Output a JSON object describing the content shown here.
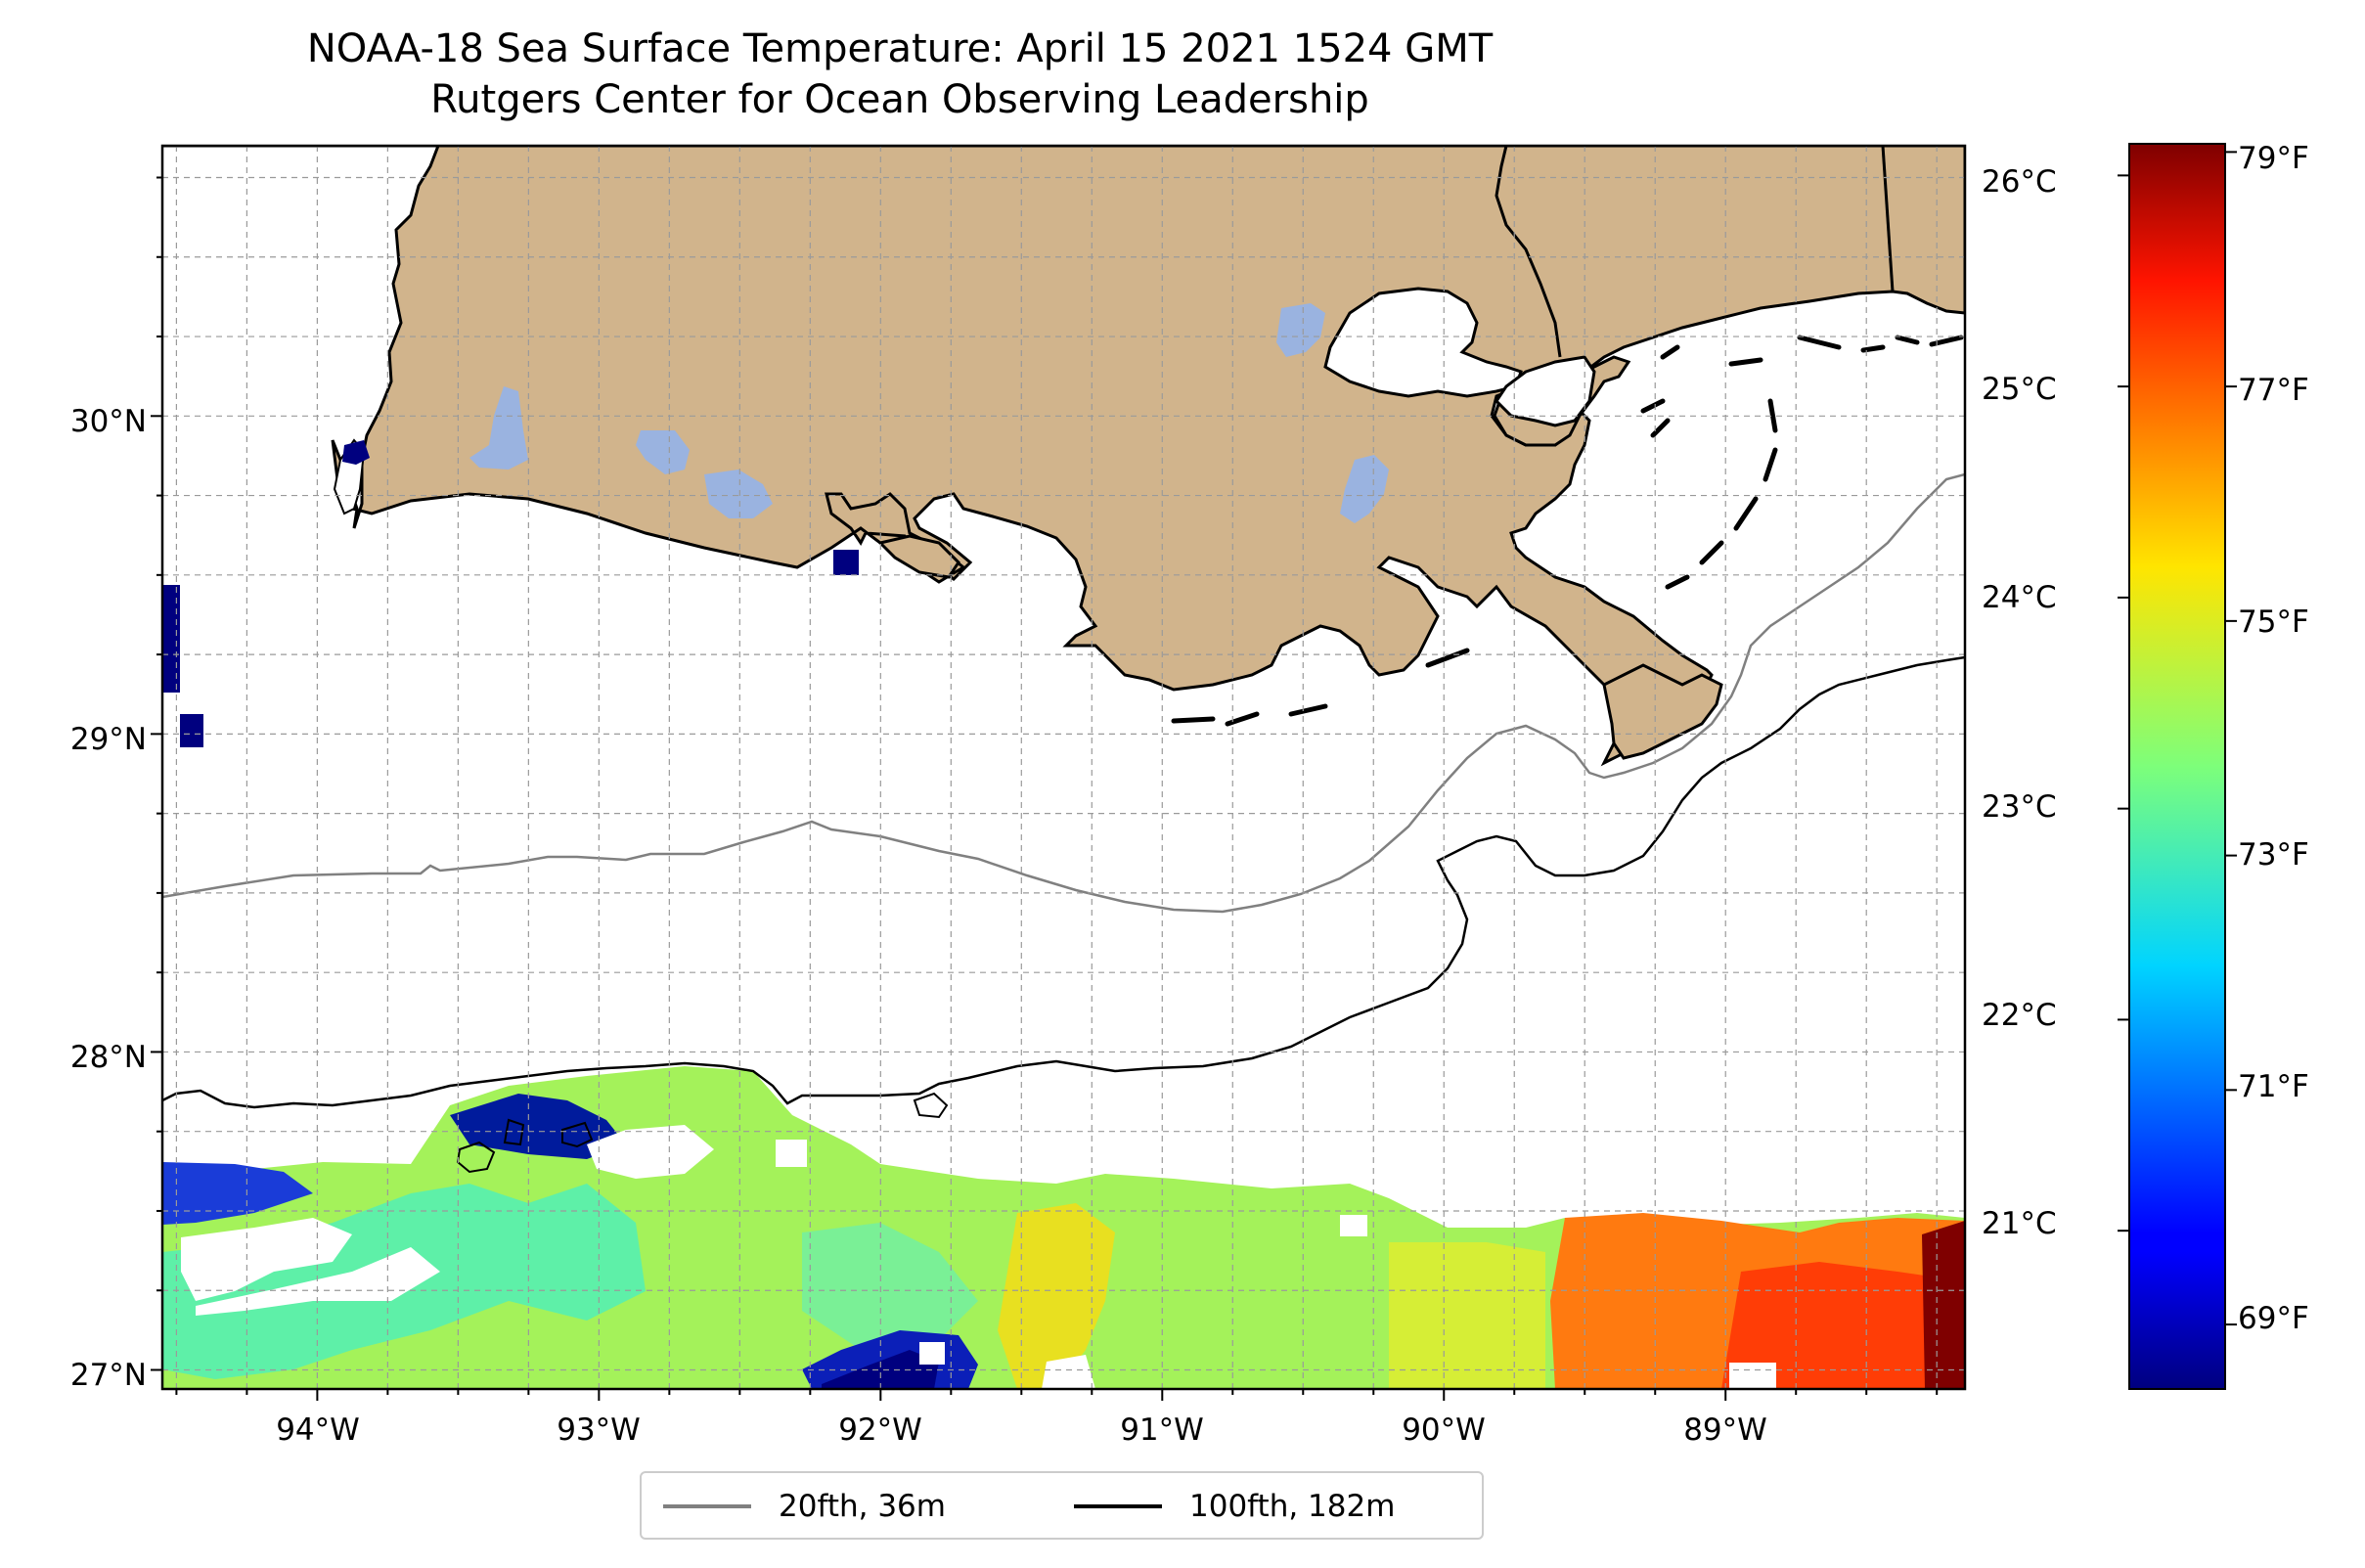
{
  "title": {
    "line1": "NOAA-18 Sea Surface Temperature: April 15 2021 1524 GMT",
    "line2": "Rutgers Center for Ocean Observing Leadership"
  },
  "map": {
    "extent": {
      "lon_min": -94.55,
      "lon_max": -88.15,
      "lat_min": 26.94,
      "lat_max": 30.85
    },
    "land_color": "#d1b48c",
    "lake_color": "#9ab3e0",
    "coastline_color": "#000000",
    "gridlines": "dashed",
    "lat_ticks": [
      {
        "value": 27,
        "label": "27°N"
      },
      {
        "value": 28,
        "label": "28°N"
      },
      {
        "value": 29,
        "label": "29°N"
      },
      {
        "value": 30,
        "label": "30°N"
      }
    ],
    "lon_ticks": [
      {
        "value": -94,
        "label": "94°W"
      },
      {
        "value": -93,
        "label": "93°W"
      },
      {
        "value": -92,
        "label": "92°W"
      },
      {
        "value": -91,
        "label": "91°W"
      },
      {
        "value": -90,
        "label": "90°W"
      },
      {
        "value": -89,
        "label": "89°W"
      }
    ]
  },
  "chart_data": {
    "type": "heatmap",
    "title": "NOAA-18 Sea Surface Temperature: April 15 2021 1524 GMT",
    "subtitle": "Rutgers Center for Ocean Observing Leadership",
    "variable": "Sea Surface Temperature",
    "colormap": "jet",
    "colorbar": {
      "celsius_range": [
        20.25,
        26.15
      ],
      "celsius_ticks": [
        {
          "value": 21,
          "label": "21°C"
        },
        {
          "value": 22,
          "label": "22°C"
        },
        {
          "value": 23,
          "label": "23°C"
        },
        {
          "value": 24,
          "label": "24°C"
        },
        {
          "value": 25,
          "label": "25°C"
        },
        {
          "value": 26,
          "label": "26°C"
        }
      ],
      "fahrenheit_ticks": [
        {
          "value": 69,
          "label": "69°F"
        },
        {
          "value": 71,
          "label": "71°F"
        },
        {
          "value": 73,
          "label": "73°F"
        },
        {
          "value": 75,
          "label": "75°F"
        },
        {
          "value": 77,
          "label": "77°F"
        },
        {
          "value": 79,
          "label": "79°F"
        }
      ]
    },
    "legend": {
      "placement": "bottom-center",
      "entries": [
        {
          "label": "20fth, 36m",
          "color": "#808080"
        },
        {
          "label": "100fth, 182m",
          "color": "#000000"
        }
      ]
    }
  }
}
